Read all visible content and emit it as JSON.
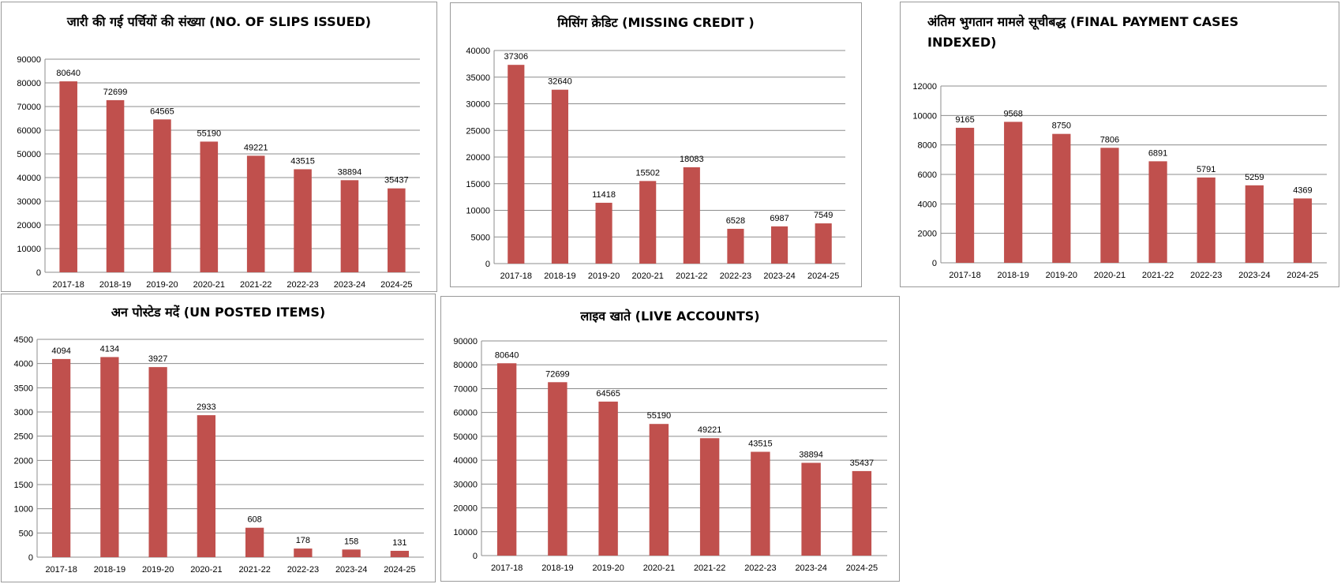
{
  "chart_data": [
    {
      "type": "bar",
      "title": "जारी की गई पर्चियों की संख्या (NO. OF SLIPS ISSUED)",
      "categories": [
        "2017-18",
        "2018-19",
        "2019-20",
        "2020-21",
        "2021-22",
        "2022-23",
        "2023-24",
        "2024-25"
      ],
      "values": [
        80640,
        72699,
        64565,
        55190,
        49221,
        43515,
        38894,
        35437
      ],
      "ylim": [
        0,
        90000
      ],
      "yticks": [
        0,
        10000,
        20000,
        30000,
        40000,
        50000,
        60000,
        70000,
        80000,
        90000
      ],
      "grid": true,
      "color": "#C0504D"
    },
    {
      "type": "bar",
      "title": "मिसिंग क्रेडिट (MISSING CREDIT )",
      "categories": [
        "2017-18",
        "2018-19",
        "2019-20",
        "2020-21",
        "2021-22",
        "2022-23",
        "2023-24",
        "2024-25"
      ],
      "values": [
        37306,
        32640,
        11418,
        15502,
        18083,
        6528,
        6987,
        7549
      ],
      "ylim": [
        0,
        40000
      ],
      "yticks": [
        0,
        5000,
        10000,
        15000,
        20000,
        25000,
        30000,
        35000,
        40000
      ],
      "grid": true,
      "color": "#C0504D"
    },
    {
      "type": "bar",
      "title": "अंतिम भुगतान मामले सूचीबद्ध (FINAL PAYMENT CASES INDEXED)",
      "categories": [
        "2017-18",
        "2018-19",
        "2019-20",
        "2020-21",
        "2021-22",
        "2022-23",
        "2023-24",
        "2024-25"
      ],
      "values": [
        9165,
        9568,
        8750,
        7806,
        6891,
        5791,
        5259,
        4369
      ],
      "ylim": [
        0,
        12000
      ],
      "yticks": [
        0,
        2000,
        4000,
        6000,
        8000,
        10000,
        12000
      ],
      "grid": true,
      "color": "#C0504D"
    },
    {
      "type": "bar",
      "title": "अन पोस्टेड मदें (UN POSTED ITEMS)",
      "categories": [
        "2017-18",
        "2018-19",
        "2019-20",
        "2020-21",
        "2021-22",
        "2022-23",
        "2023-24",
        "2024-25"
      ],
      "values": [
        4094,
        4134,
        3927,
        2933,
        608,
        178,
        158,
        131
      ],
      "ylim": [
        0,
        4500
      ],
      "yticks": [
        0,
        500,
        1000,
        1500,
        2000,
        2500,
        3000,
        3500,
        4000,
        4500
      ],
      "grid": true,
      "color": "#C0504D"
    },
    {
      "type": "bar",
      "title": "लाइव खाते (LIVE ACCOUNTS)",
      "categories": [
        "2017-18",
        "2018-19",
        "2019-20",
        "2020-21",
        "2021-22",
        "2022-23",
        "2023-24",
        "2024-25"
      ],
      "values": [
        80640,
        72699,
        64565,
        55190,
        49221,
        43515,
        38894,
        35437
      ],
      "ylim": [
        0,
        90000
      ],
      "yticks": [
        0,
        10000,
        20000,
        30000,
        40000,
        50000,
        60000,
        70000,
        80000,
        90000
      ],
      "grid": true,
      "color": "#C0504D"
    }
  ]
}
